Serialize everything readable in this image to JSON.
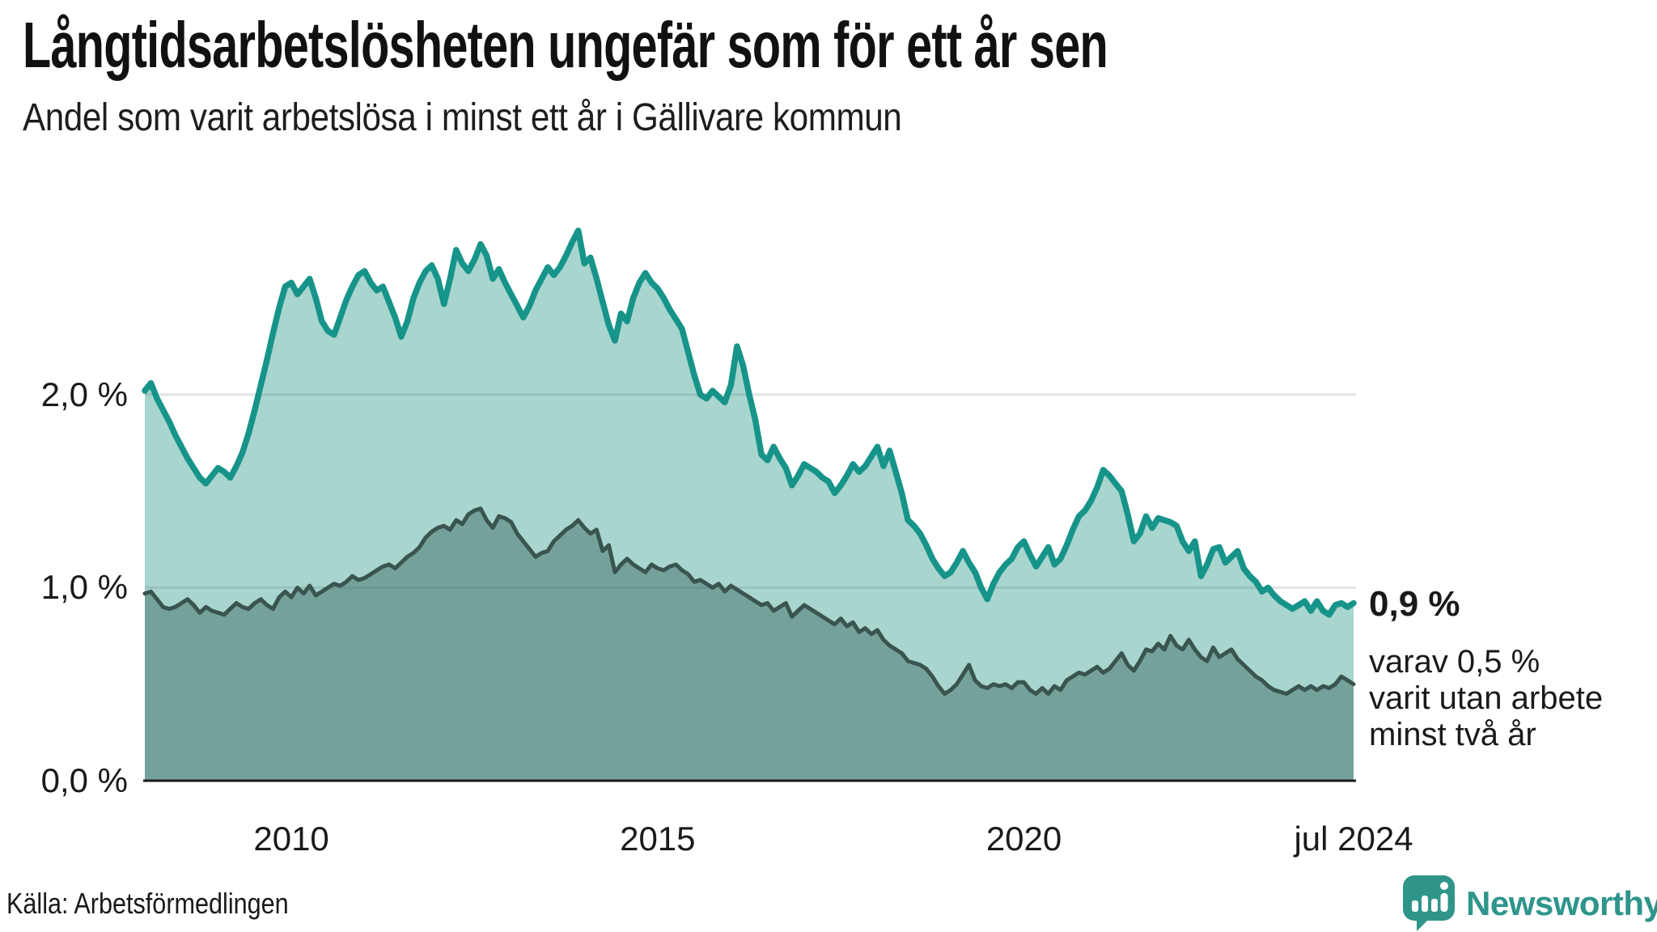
{
  "chart_data": {
    "type": "area",
    "title": "Långtidsarbetslösheten ungefär som för ett år sen",
    "subtitle": "Andel som varit arbetslösa i minst ett år i Gällivare kommun",
    "unit": "%",
    "frequency": "monthly",
    "x_start": "2008-01",
    "x_end": "2024-07",
    "ylim": [
      0,
      3.0
    ],
    "grid": "horizontal",
    "legend_position": "none",
    "colors": {
      "line_1yr": "#17948a",
      "fill_1yr": "#a8d5ce",
      "line_2yr": "#3a544f",
      "fill_2yr": "#74a29b",
      "gridline": "#e1e6e7",
      "axis": "#1a1a1a"
    },
    "y_ticks": [
      {
        "label": "0,0 %",
        "value": 0
      },
      {
        "label": "1,0 %",
        "value": 1
      },
      {
        "label": "2,0 %",
        "value": 2
      }
    ],
    "x_ticks": [
      {
        "label": "2010",
        "month_index": 24
      },
      {
        "label": "2015",
        "month_index": 84
      },
      {
        "label": "2020",
        "month_index": 144
      },
      {
        "label": "jul 2024",
        "month_index": 198
      }
    ],
    "series": [
      {
        "name": "Andel arbetslösa minst ett år",
        "values": [
          2.02,
          2.06,
          1.98,
          1.92,
          1.86,
          1.79,
          1.73,
          1.67,
          1.62,
          1.57,
          1.54,
          1.58,
          1.62,
          1.6,
          1.57,
          1.63,
          1.7,
          1.8,
          1.92,
          2.05,
          2.18,
          2.32,
          2.45,
          2.56,
          2.58,
          2.52,
          2.56,
          2.6,
          2.5,
          2.38,
          2.33,
          2.31,
          2.4,
          2.49,
          2.56,
          2.62,
          2.64,
          2.58,
          2.54,
          2.56,
          2.48,
          2.4,
          2.3,
          2.38,
          2.5,
          2.58,
          2.64,
          2.67,
          2.6,
          2.47,
          2.6,
          2.75,
          2.68,
          2.64,
          2.7,
          2.78,
          2.72,
          2.6,
          2.65,
          2.58,
          2.52,
          2.46,
          2.4,
          2.46,
          2.54,
          2.6,
          2.66,
          2.62,
          2.66,
          2.72,
          2.79,
          2.85,
          2.68,
          2.71,
          2.6,
          2.48,
          2.36,
          2.28,
          2.42,
          2.38,
          2.5,
          2.58,
          2.63,
          2.58,
          2.55,
          2.5,
          2.44,
          2.39,
          2.34,
          2.22,
          2.1,
          2.0,
          1.98,
          2.02,
          1.99,
          1.96,
          2.05,
          2.25,
          2.15,
          2.0,
          1.87,
          1.69,
          1.66,
          1.73,
          1.67,
          1.62,
          1.53,
          1.58,
          1.64,
          1.62,
          1.6,
          1.57,
          1.55,
          1.49,
          1.53,
          1.58,
          1.64,
          1.6,
          1.63,
          1.68,
          1.73,
          1.63,
          1.71,
          1.6,
          1.49,
          1.35,
          1.32,
          1.28,
          1.22,
          1.15,
          1.1,
          1.06,
          1.08,
          1.13,
          1.19,
          1.13,
          1.08,
          1.0,
          0.94,
          1.02,
          1.08,
          1.12,
          1.15,
          1.21,
          1.24,
          1.17,
          1.11,
          1.16,
          1.21,
          1.12,
          1.15,
          1.22,
          1.3,
          1.37,
          1.4,
          1.45,
          1.52,
          1.61,
          1.58,
          1.54,
          1.5,
          1.38,
          1.24,
          1.28,
          1.37,
          1.31,
          1.36,
          1.35,
          1.34,
          1.32,
          1.24,
          1.19,
          1.24,
          1.06,
          1.12,
          1.2,
          1.21,
          1.13,
          1.16,
          1.19,
          1.1,
          1.06,
          1.03,
          0.98,
          1.0,
          0.96,
          0.93,
          0.91,
          0.89,
          0.91,
          0.93,
          0.88,
          0.93,
          0.88,
          0.86,
          0.91,
          0.92,
          0.9,
          0.92
        ]
      },
      {
        "name": "Andel arbetslösa minst två år",
        "values": [
          0.97,
          0.98,
          0.94,
          0.9,
          0.89,
          0.9,
          0.92,
          0.94,
          0.91,
          0.87,
          0.9,
          0.88,
          0.87,
          0.86,
          0.89,
          0.92,
          0.9,
          0.89,
          0.92,
          0.94,
          0.91,
          0.89,
          0.95,
          0.98,
          0.95,
          1.0,
          0.97,
          1.01,
          0.96,
          0.98,
          1.0,
          1.02,
          1.01,
          1.03,
          1.06,
          1.04,
          1.05,
          1.07,
          1.09,
          1.11,
          1.12,
          1.1,
          1.13,
          1.16,
          1.18,
          1.21,
          1.26,
          1.29,
          1.31,
          1.32,
          1.3,
          1.35,
          1.33,
          1.38,
          1.4,
          1.41,
          1.35,
          1.31,
          1.37,
          1.36,
          1.34,
          1.28,
          1.24,
          1.2,
          1.16,
          1.18,
          1.19,
          1.24,
          1.27,
          1.3,
          1.32,
          1.35,
          1.31,
          1.28,
          1.3,
          1.19,
          1.22,
          1.08,
          1.12,
          1.15,
          1.12,
          1.1,
          1.08,
          1.12,
          1.1,
          1.09,
          1.11,
          1.12,
          1.09,
          1.07,
          1.03,
          1.04,
          1.02,
          1.0,
          1.02,
          0.98,
          1.01,
          0.99,
          0.97,
          0.95,
          0.93,
          0.91,
          0.92,
          0.88,
          0.9,
          0.92,
          0.85,
          0.88,
          0.91,
          0.89,
          0.87,
          0.85,
          0.83,
          0.81,
          0.84,
          0.8,
          0.82,
          0.77,
          0.79,
          0.76,
          0.78,
          0.73,
          0.7,
          0.68,
          0.66,
          0.62,
          0.61,
          0.6,
          0.58,
          0.54,
          0.49,
          0.45,
          0.47,
          0.5,
          0.55,
          0.6,
          0.52,
          0.49,
          0.48,
          0.5,
          0.49,
          0.5,
          0.48,
          0.51,
          0.51,
          0.47,
          0.45,
          0.48,
          0.45,
          0.49,
          0.47,
          0.52,
          0.54,
          0.56,
          0.55,
          0.57,
          0.59,
          0.56,
          0.58,
          0.62,
          0.66,
          0.6,
          0.57,
          0.62,
          0.68,
          0.67,
          0.71,
          0.68,
          0.75,
          0.7,
          0.68,
          0.73,
          0.68,
          0.64,
          0.62,
          0.69,
          0.64,
          0.66,
          0.68,
          0.63,
          0.6,
          0.57,
          0.54,
          0.52,
          0.49,
          0.47,
          0.46,
          0.45,
          0.47,
          0.49,
          0.47,
          0.49,
          0.47,
          0.49,
          0.48,
          0.5,
          0.54,
          0.52,
          0.5
        ]
      }
    ]
  },
  "annotation": {
    "headline": "0,9 %",
    "lines": [
      "varav 0,5 %",
      "varit utan arbete",
      "minst två år"
    ]
  },
  "footer": {
    "source": "Källa: Arbetsförmedlingen",
    "brand": "Newsworthy"
  }
}
